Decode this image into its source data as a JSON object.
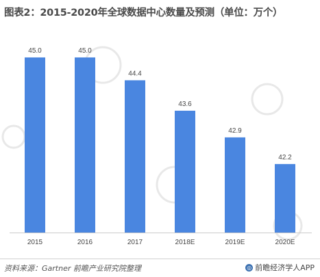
{
  "title": "图表2：2015-2020年全球数据中心数量及预测（单位：万个）",
  "source": "资料来源：Gartner 前瞻产业研究院整理",
  "brand": "前瞻经济学人APP",
  "watermark_url": "http://blog.csdn.net",
  "colors": {
    "bar": "#4a86e0",
    "axis": "#cccccc",
    "watermark": "#e8e8e8"
  },
  "icons": {
    "brand": "brand-logo-icon"
  },
  "chart_data": {
    "type": "bar",
    "categories": [
      "2015",
      "2016",
      "2017",
      "2018E",
      "2019E",
      "2020E"
    ],
    "values": [
      45.0,
      45.0,
      44.4,
      43.6,
      42.9,
      42.2
    ],
    "title": "图表2：2015-2020年全球数据中心数量及预测（单位：万个）",
    "xlabel": "",
    "ylabel": "",
    "ylim": [
      40.4,
      45.7
    ],
    "grid": false,
    "legend": "none"
  }
}
